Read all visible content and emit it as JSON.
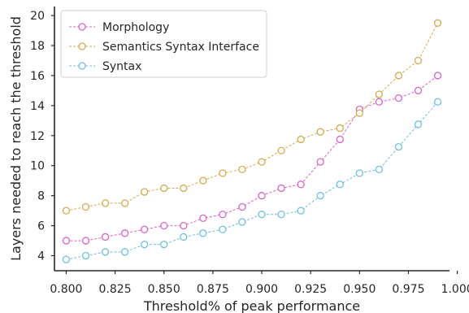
{
  "chart_data": {
    "type": "line",
    "xlabel": "Threshold% of peak performance",
    "ylabel": "Layers needed to reach the threshold",
    "xlim": [
      0.794,
      0.996
    ],
    "ylim": [
      3.0,
      20.6
    ],
    "xticks": [
      0.8,
      0.825,
      0.85,
      0.875,
      0.9,
      0.925,
      0.95,
      0.975,
      1.0
    ],
    "xtick_labels": [
      "0.800",
      "0.825",
      "0.850",
      "0.875",
      "0.900",
      "0.925",
      "0.950",
      "0.975",
      "1.000"
    ],
    "yticks": [
      4,
      6,
      8,
      10,
      12,
      14,
      16,
      18,
      20
    ],
    "ytick_labels": [
      "4",
      "6",
      "8",
      "10",
      "12",
      "14",
      "16",
      "18",
      "20"
    ],
    "grid": false,
    "legend_position": "top-left",
    "x": [
      0.8,
      0.81,
      0.82,
      0.83,
      0.84,
      0.85,
      0.86,
      0.87,
      0.88,
      0.89,
      0.9,
      0.91,
      0.92,
      0.93,
      0.94,
      0.95,
      0.96,
      0.97,
      0.98,
      0.99
    ],
    "series": [
      {
        "name": "Morphology",
        "color": "#d865c6",
        "values": [
          5.0,
          5.0,
          5.25,
          5.5,
          5.75,
          6.0,
          6.0,
          6.5,
          6.75,
          7.25,
          8.0,
          8.5,
          8.75,
          10.25,
          11.75,
          13.75,
          14.25,
          14.5,
          15.0,
          16.0
        ]
      },
      {
        "name": "Semantics Syntax Interface",
        "color": "#d4aa4f",
        "values": [
          7.0,
          7.25,
          7.5,
          7.5,
          8.25,
          8.5,
          8.5,
          9.0,
          9.5,
          9.75,
          10.25,
          11.0,
          11.75,
          12.25,
          12.5,
          13.5,
          14.75,
          16.0,
          17.0,
          19.5
        ]
      },
      {
        "name": "Syntax",
        "color": "#6fbfde",
        "values": [
          3.75,
          4.0,
          4.25,
          4.25,
          4.75,
          4.75,
          5.25,
          5.5,
          5.75,
          6.25,
          6.75,
          6.75,
          7.0,
          8.0,
          8.75,
          9.5,
          9.75,
          11.25,
          12.75,
          14.25
        ]
      }
    ]
  }
}
